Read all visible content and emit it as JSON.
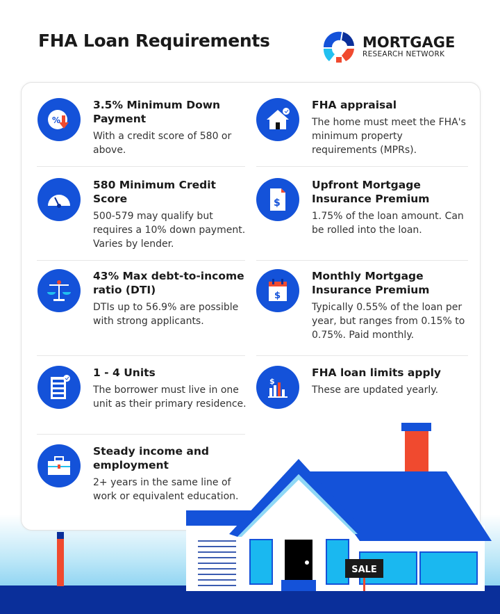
{
  "header": {
    "title": "FHA Loan Requirements"
  },
  "logo": {
    "line1": "MORTGAGE",
    "line2": "RESEARCH NETWORK"
  },
  "left_items": [
    {
      "icon": "percent-down-icon",
      "title": "3.5% Minimum Down Payment",
      "body": "With a credit score of 580 or above."
    },
    {
      "icon": "gauge-icon",
      "title": "580 Minimum Credit Score",
      "body": "500-579 may qualify but requires a 10% down payment. Varies by lender."
    },
    {
      "icon": "scale-icon",
      "title": "43% Max debt-to-income ratio (DTI)",
      "body": "DTIs up to 56.9% are possible with strong applicants."
    },
    {
      "icon": "building-units-icon",
      "title": "1 - 4 Units",
      "body": "The borrower must live in one unit as their primary residence."
    },
    {
      "icon": "briefcase-icon",
      "title": "Steady income and employment",
      "body": "2+ years in the same line of work or equivalent education."
    }
  ],
  "right_items": [
    {
      "icon": "house-check-icon",
      "title": "FHA appraisal",
      "body": "The home must meet the FHA's minimum property requirements (MPRs)."
    },
    {
      "icon": "dollar-document-icon",
      "title": "Upfront Mortgage Insurance Premium",
      "body": "1.75% of the loan amount. Can be rolled into the loan."
    },
    {
      "icon": "dollar-calendar-icon",
      "title": "Monthly Mortgage Insurance Premium",
      "body": "Typically 0.55% of the loan per year, but ranges from 0.15% to 0.75%. Paid monthly."
    },
    {
      "icon": "dollar-chart-icon",
      "title": "FHA loan limits apply",
      "body": "These are updated yearly."
    }
  ],
  "sign": {
    "label": "SALE"
  },
  "colors": {
    "primary": "#1452d9",
    "accent": "#f04a2f",
    "dark": "#0a2f9a",
    "window": "#1ab8f0"
  }
}
